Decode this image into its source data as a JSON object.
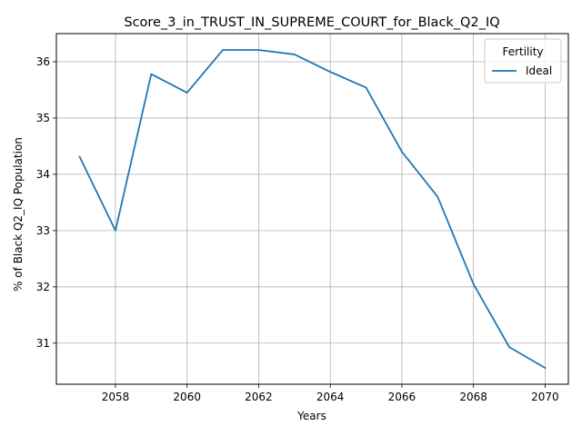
{
  "chart_data": {
    "type": "line",
    "title": "Score_3_in_TRUST_IN_SUPREME_COURT_for_Black_Q2_IQ",
    "xlabel": "Years",
    "ylabel": "% of Black Q2_IQ Population",
    "xlim": [
      2056.35,
      2070.65
    ],
    "ylim": [
      30.27,
      36.5
    ],
    "x_ticks": [
      2058,
      2060,
      2062,
      2064,
      2066,
      2068,
      2070
    ],
    "y_ticks": [
      31,
      32,
      33,
      34,
      35,
      36
    ],
    "grid": true,
    "legend": {
      "title": "Fertility",
      "position": "top-right"
    },
    "series": [
      {
        "name": "Ideal",
        "color": "#1f77b4",
        "x": [
          2057,
          2058,
          2059,
          2060,
          2061,
          2062,
          2063,
          2064,
          2065,
          2066,
          2067,
          2068,
          2069,
          2070
        ],
        "y": [
          34.31,
          33.0,
          35.78,
          35.45,
          36.21,
          36.21,
          36.13,
          35.82,
          35.54,
          34.4,
          33.6,
          32.05,
          30.93,
          30.56
        ]
      }
    ]
  }
}
